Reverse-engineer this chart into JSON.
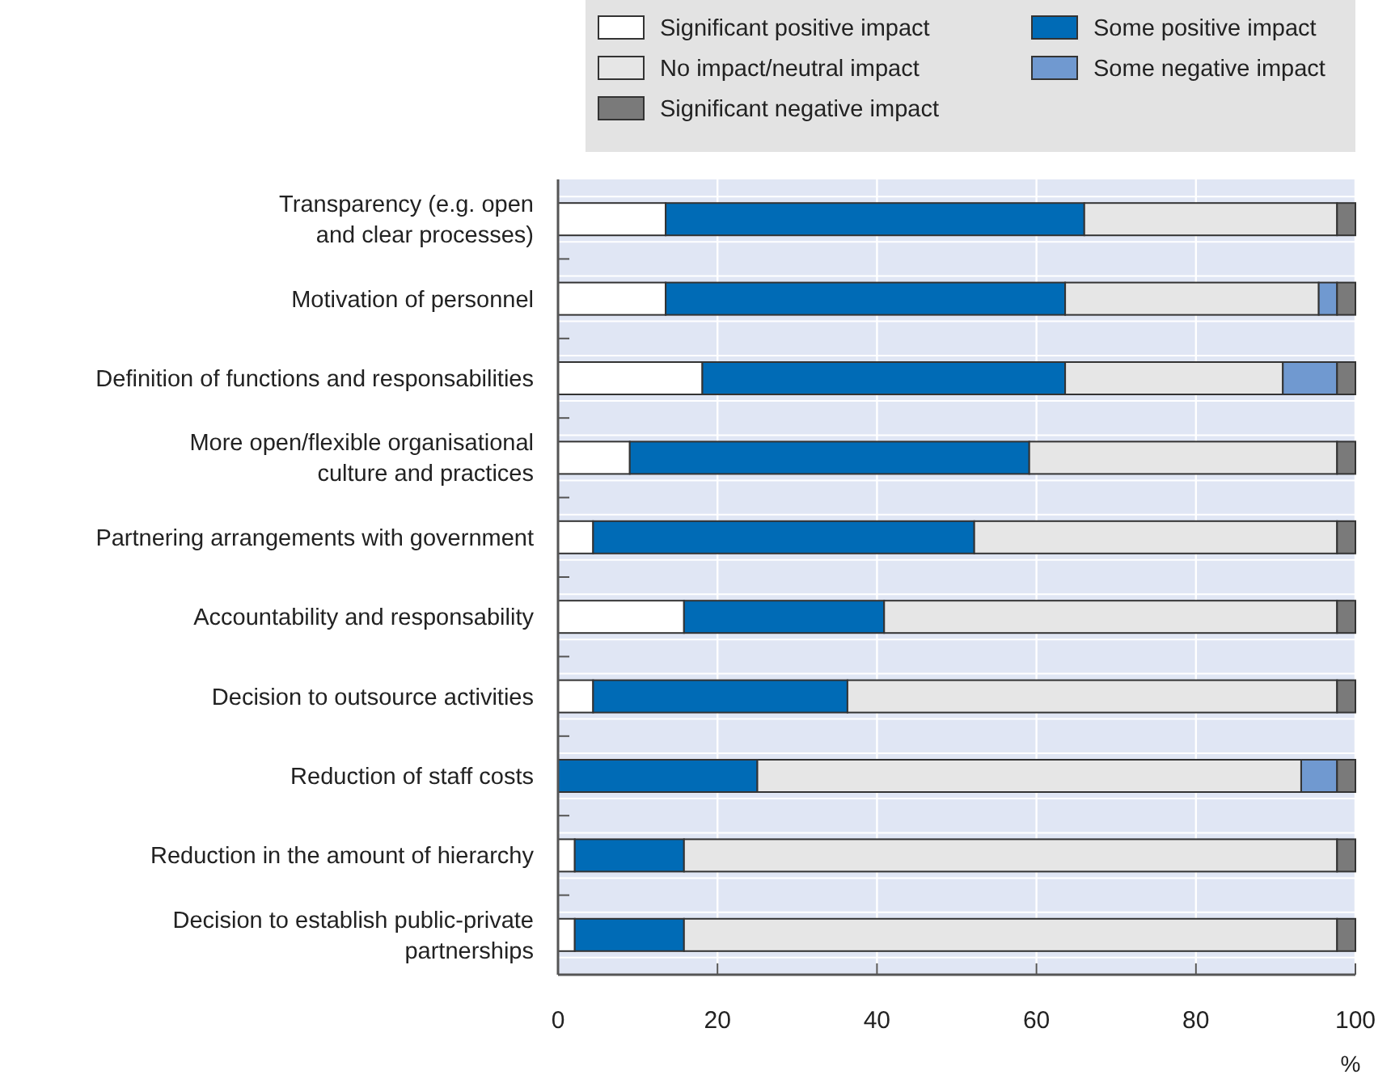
{
  "chart_data": {
    "type": "bar",
    "orientation": "horizontal",
    "stacked": true,
    "xlabel": "%",
    "categories": [
      "Transparency (e.g. open\nand clear processes)",
      "Motivation of personnel",
      "Definition of functions and responsabilities",
      "More open/flexible organisational\nculture and practices",
      "Partnering arrangements with government",
      "Accountability and responsability",
      "Decision to outsource activities",
      "Reduction of staff costs",
      "Reduction in the amount of hierarchy",
      "Decision to establish public-private\npartnerships"
    ],
    "series": [
      {
        "name": "Significant positive impact",
        "color": "#ffffff",
        "values": [
          13.5,
          13.5,
          18.1,
          9.0,
          4.4,
          15.8,
          4.4,
          0,
          2.1,
          2.1
        ]
      },
      {
        "name": "Some positive impact",
        "color": "#006bb6",
        "values": [
          52.5,
          50.1,
          45.5,
          50.1,
          47.8,
          25.1,
          31.9,
          25.0,
          13.7,
          13.7
        ]
      },
      {
        "name": "No impact/neutral impact",
        "color": "#e6e6e6",
        "values": [
          31.7,
          31.8,
          27.3,
          38.6,
          45.5,
          56.8,
          61.4,
          68.2,
          81.9,
          81.9
        ]
      },
      {
        "name": "Some negative impact",
        "color": "#7099d0",
        "values": [
          0,
          2.3,
          6.8,
          0,
          0,
          0,
          0,
          4.5,
          0,
          0
        ]
      },
      {
        "name": "Significant negative impact",
        "color": "#7a7a7a",
        "values": [
          2.3,
          2.3,
          2.3,
          2.3,
          2.3,
          2.3,
          2.3,
          2.3,
          2.3,
          2.3
        ]
      }
    ],
    "xlim": [
      0,
      100
    ],
    "xticks": [
      0,
      20,
      40,
      60,
      80,
      100
    ],
    "grid": "x",
    "legend": "top right"
  }
}
